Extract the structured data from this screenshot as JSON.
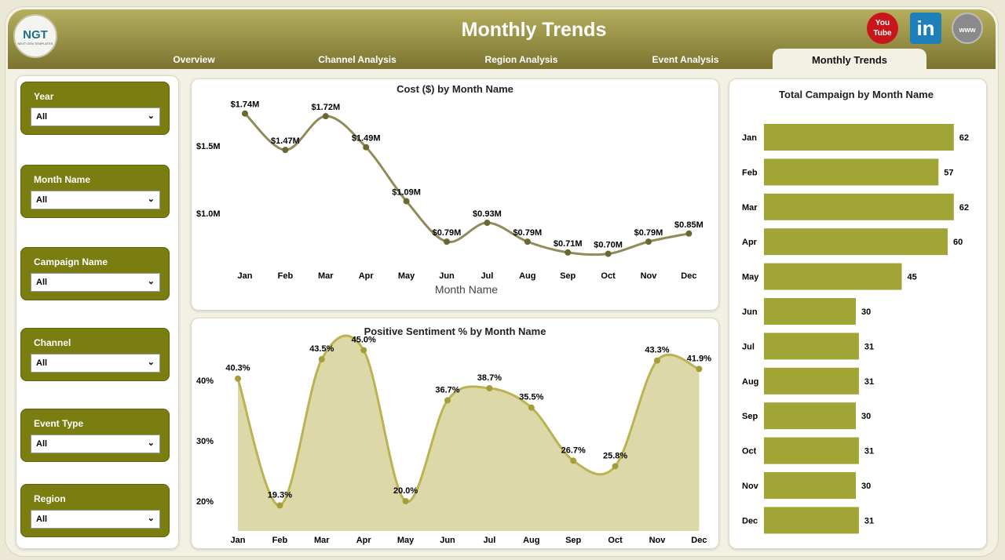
{
  "header": {
    "title": "Monthly Trends",
    "logo_text": "NGT",
    "logo_sub": "NEXT GEN TEMPLATES",
    "youtube": "You Tube",
    "linkedin": "in",
    "website": "www"
  },
  "tabs": [
    {
      "label": "Overview"
    },
    {
      "label": "Channel Analysis"
    },
    {
      "label": "Region Analysis"
    },
    {
      "label": "Event Analysis"
    },
    {
      "label": "Monthly Trends",
      "active": true
    }
  ],
  "slicers": [
    {
      "label": "Year",
      "value": "All"
    },
    {
      "label": "Month Name",
      "value": "All"
    },
    {
      "label": "Campaign Name",
      "value": "All"
    },
    {
      "label": "Channel",
      "value": "All"
    },
    {
      "label": "Event Type",
      "value": "All"
    },
    {
      "label": "Region",
      "value": "All"
    }
  ],
  "colors": {
    "bar": "#a0a535",
    "cost_line": "#918b5a",
    "cost_dot": "#6b6730",
    "sent_line": "#bab352",
    "sent_fill": "#ddd8a7",
    "sent_dot": "#a59d3a"
  },
  "chart_data": [
    {
      "type": "line",
      "title": "Cost ($) by Month Name",
      "xlabel": "Month Name",
      "ylabel": "",
      "categories": [
        "Jan",
        "Feb",
        "Mar",
        "Apr",
        "May",
        "Jun",
        "Jul",
        "Aug",
        "Sep",
        "Oct",
        "Nov",
        "Dec"
      ],
      "values": [
        1.74,
        1.47,
        1.72,
        1.49,
        1.09,
        0.79,
        0.93,
        0.79,
        0.71,
        0.7,
        0.79,
        0.85
      ],
      "labels": [
        "$1.74M",
        "$1.47M",
        "$1.72M",
        "$1.49M",
        "$1.09M",
        "$0.79M",
        "$0.93M",
        "$0.79M",
        "$0.71M",
        "$0.70M",
        "$0.79M",
        "$0.85M"
      ],
      "yticks": [
        {
          "v": 1.0,
          "label": "$1.0M"
        },
        {
          "v": 1.5,
          "label": "$1.5M"
        }
      ]
    },
    {
      "type": "area",
      "title": "Positive Sentiment % by Month Name",
      "categories": [
        "Jan",
        "Feb",
        "Mar",
        "Apr",
        "May",
        "Jun",
        "Jul",
        "Aug",
        "Sep",
        "Oct",
        "Nov",
        "Dec"
      ],
      "values": [
        40.3,
        19.3,
        43.5,
        45.0,
        20.0,
        36.7,
        38.7,
        35.5,
        26.7,
        25.8,
        43.3,
        41.9
      ],
      "labels": [
        "40.3%",
        "19.3%",
        "43.5%",
        "45.0%",
        "20.0%",
        "36.7%",
        "38.7%",
        "35.5%",
        "26.7%",
        "25.8%",
        "43.3%",
        "41.9%"
      ],
      "yticks": [
        {
          "v": 20,
          "label": "20%"
        },
        {
          "v": 30,
          "label": "30%"
        },
        {
          "v": 40,
          "label": "40%"
        }
      ]
    },
    {
      "type": "bar",
      "title": "Total Campaign by Month Name",
      "categories": [
        "Jan",
        "Feb",
        "Mar",
        "Apr",
        "May",
        "Jun",
        "Jul",
        "Aug",
        "Sep",
        "Oct",
        "Nov",
        "Dec"
      ],
      "values": [
        62,
        57,
        62,
        60,
        45,
        30,
        31,
        31,
        30,
        31,
        30,
        31
      ]
    }
  ]
}
